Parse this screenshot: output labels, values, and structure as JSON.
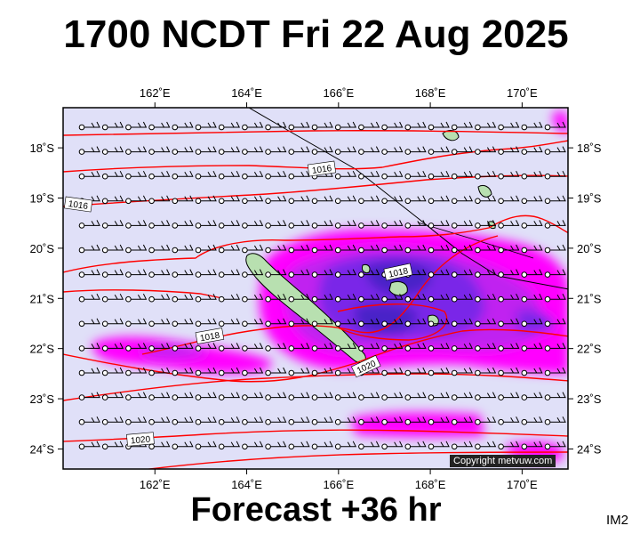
{
  "title": "1700 NCDT Fri 22 Aug 2025",
  "subtitle": "Forecast +36 hr",
  "image_code": "IM2",
  "copyright": "Copyright metvuw.com",
  "map": {
    "lon_ticks": [
      "162˚E",
      "164˚E",
      "166˚E",
      "168˚E",
      "170˚E"
    ],
    "lon_values": [
      162,
      164,
      166,
      168,
      170
    ],
    "lat_ticks": [
      "18˚S",
      "19˚S",
      "20˚S",
      "21˚S",
      "22˚S",
      "23˚S",
      "24˚S"
    ],
    "lat_values": [
      -18,
      -19,
      -20,
      -21,
      -22,
      -23,
      -24
    ],
    "lon_range": [
      160.0,
      171.0
    ],
    "lat_range": [
      -17.2,
      -24.4
    ],
    "isobar_labels": [
      "1016",
      "1016",
      "1018",
      "1018",
      "1020",
      "1020"
    ],
    "colors": {
      "ocean": "#e0e0f8",
      "land": "#b8e0b0",
      "isobar": "#ff0000",
      "rain_light": "#ff00ff",
      "rain_medium": "#c020f0",
      "rain_heavy": "#7a28e8",
      "rain_heaviest": "#4a20c8"
    }
  }
}
